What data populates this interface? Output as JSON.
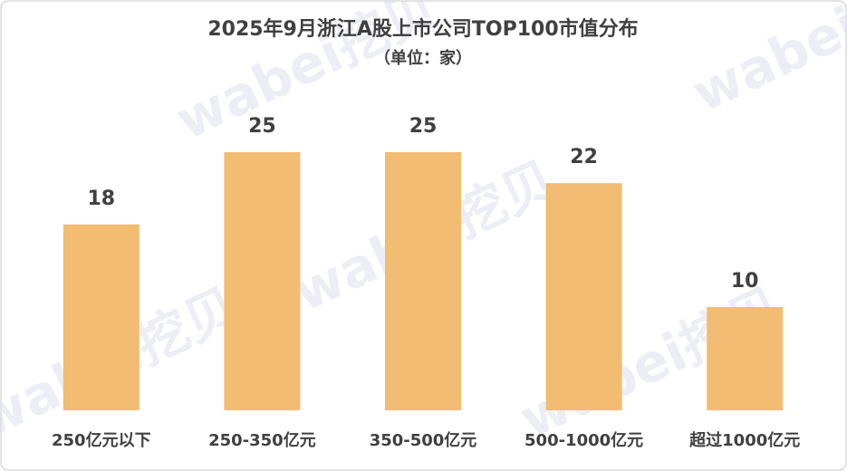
{
  "chart_data": {
    "type": "bar",
    "title": "2025年9月浙江A股上市公司TOP100市值分布",
    "subtitle": "（单位：家）",
    "watermark": "wabei挖贝",
    "categories": [
      "250亿元以下",
      "250-350亿元",
      "350-500亿元",
      "500-1000亿元",
      "超过1000亿元"
    ],
    "values": [
      18,
      25,
      25,
      22,
      10
    ],
    "color": "#f2bc72"
  }
}
